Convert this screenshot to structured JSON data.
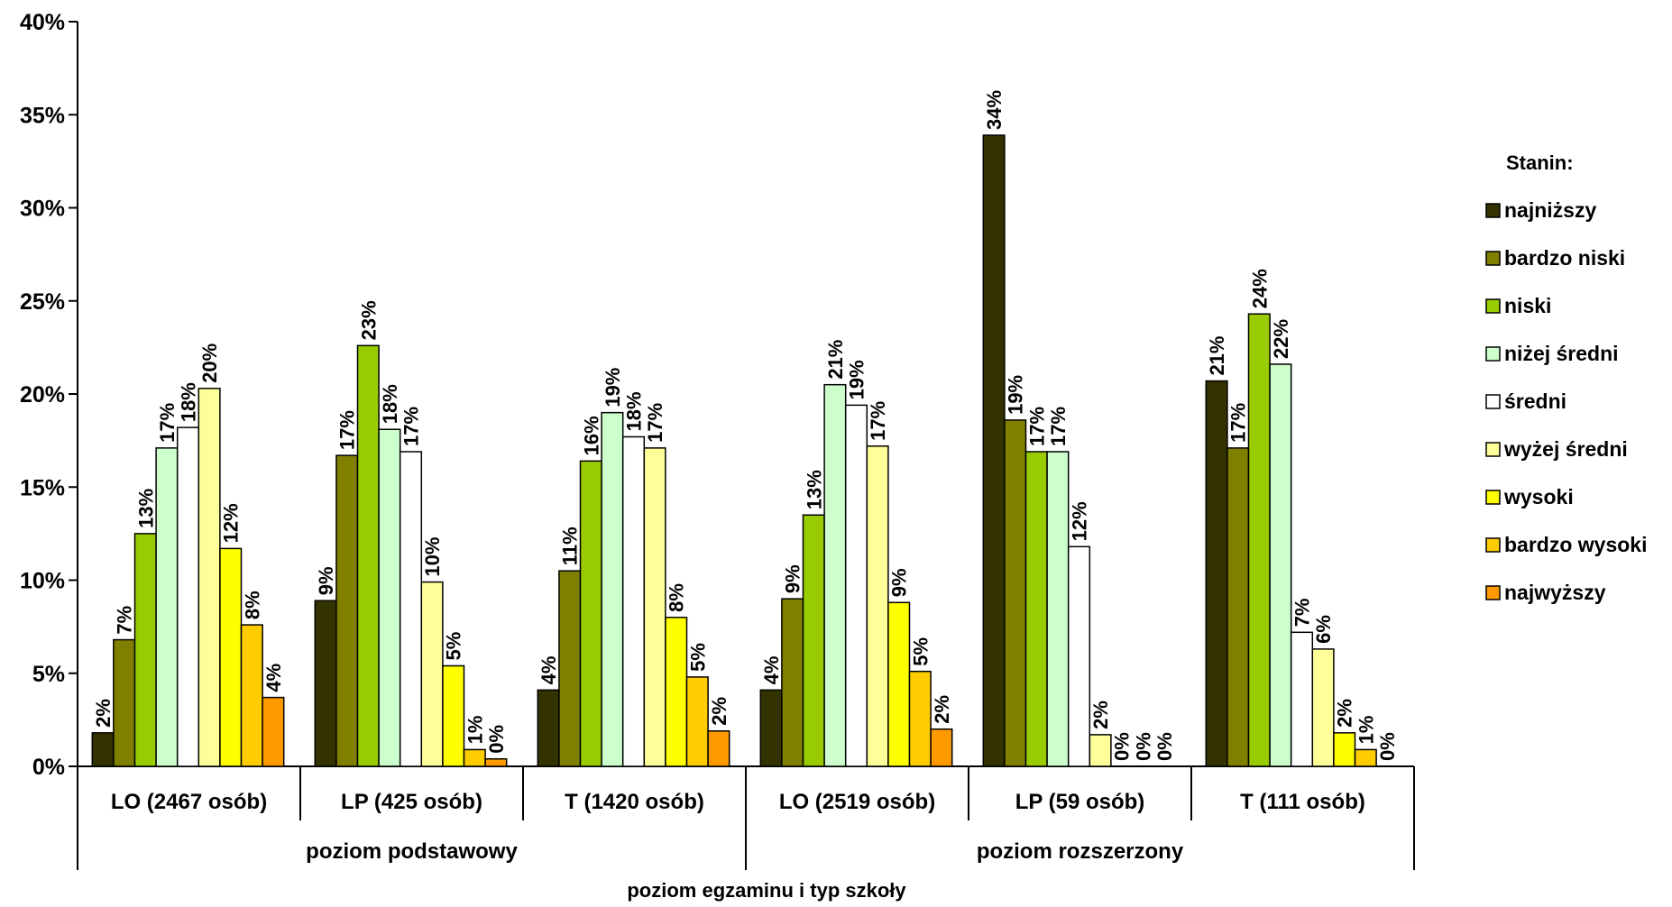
{
  "chart_data": {
    "type": "bar",
    "xlabel": "poziom egzaminu i typ szkoły",
    "ylabel": "",
    "ylim": [
      0,
      40
    ],
    "yticks": [
      "0%",
      "5%",
      "10%",
      "15%",
      "20%",
      "25%",
      "30%",
      "35%",
      "40%"
    ],
    "grid": false,
    "legend_position": "right",
    "legend_title": "Stanin:",
    "categories": [
      "LO (2467 osób)",
      "LP (425 osób)",
      "T (1420 osób)",
      "LO (2519 osób)",
      "LP (59 osób)",
      "T (111 osób)"
    ],
    "groups": [
      {
        "label": "poziom podstawowy",
        "span": [
          0,
          2
        ]
      },
      {
        "label": "poziom rozszerzony",
        "span": [
          3,
          5
        ]
      }
    ],
    "series": [
      {
        "name": "najniższy",
        "color": "#333300",
        "values": [
          1.8,
          8.9,
          4.1,
          4.1,
          33.9,
          20.7
        ],
        "labels": [
          "2%",
          "9%",
          "4%",
          "4%",
          "34%",
          "21%"
        ]
      },
      {
        "name": "bardzo niski",
        "color": "#808000",
        "values": [
          6.8,
          16.7,
          10.5,
          9.0,
          18.6,
          17.1
        ],
        "labels": [
          "7%",
          "17%",
          "11%",
          "9%",
          "19%",
          "17%"
        ]
      },
      {
        "name": "niski",
        "color": "#99CC00",
        "values": [
          12.5,
          22.6,
          16.4,
          13.5,
          16.9,
          24.3
        ],
        "labels": [
          "13%",
          "23%",
          "16%",
          "13%",
          "17%",
          "24%"
        ]
      },
      {
        "name": "niżej średni",
        "color": "#CCFFCC",
        "values": [
          17.1,
          18.1,
          19.0,
          20.5,
          16.9,
          21.6
        ],
        "labels": [
          "17%",
          "18%",
          "19%",
          "21%",
          "17%",
          "22%"
        ]
      },
      {
        "name": "średni",
        "color": "#FFFFFF",
        "values": [
          18.2,
          16.9,
          17.7,
          19.4,
          11.8,
          7.2
        ],
        "labels": [
          "18%",
          "17%",
          "18%",
          "19%",
          "12%",
          "7%"
        ]
      },
      {
        "name": "wyżej średni",
        "color": "#FFFF99",
        "values": [
          20.3,
          9.9,
          17.1,
          17.2,
          1.7,
          6.3
        ],
        "labels": [
          "20%",
          "10%",
          "17%",
          "17%",
          "2%",
          "6%"
        ]
      },
      {
        "name": "wysoki",
        "color": "#FFFF00",
        "values": [
          11.7,
          5.4,
          8.0,
          8.8,
          0.0,
          1.8
        ],
        "labels": [
          "12%",
          "5%",
          "8%",
          "9%",
          "0%",
          "2%"
        ]
      },
      {
        "name": "bardzo wysoki",
        "color": "#FFCC00",
        "values": [
          7.6,
          0.9,
          4.8,
          5.1,
          0.0,
          0.9
        ],
        "labels": [
          "8%",
          "1%",
          "5%",
          "5%",
          "0%",
          "1%"
        ]
      },
      {
        "name": "najwyższy",
        "color": "#FF9900",
        "values": [
          3.7,
          0.4,
          1.9,
          2.0,
          0.0,
          0.0
        ],
        "labels": [
          "4%",
          "0%",
          "2%",
          "2%",
          "0%",
          "0%"
        ]
      }
    ]
  }
}
